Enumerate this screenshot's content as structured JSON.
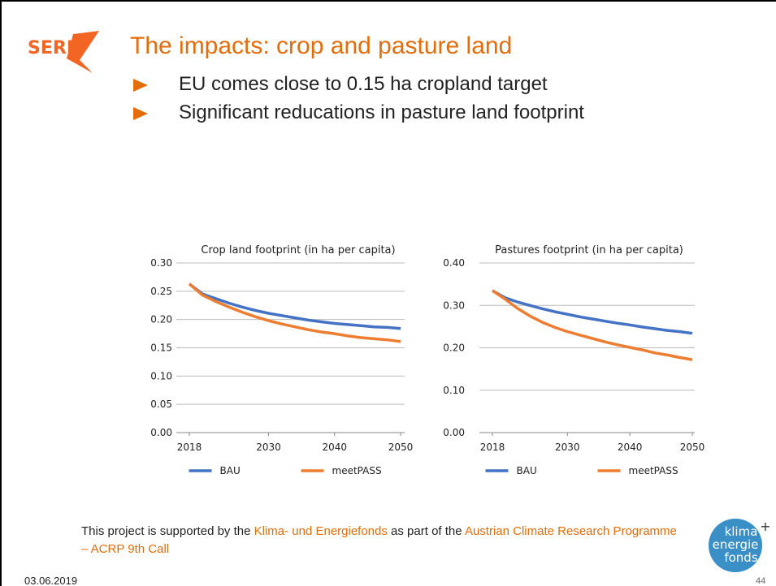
{
  "slide": {
    "title": "The impacts: crop and pasture land",
    "bullets": [
      "EU comes close to 0.15 ha cropland target",
      "Significant reducations in pasture land footprint"
    ],
    "logo": "SERI",
    "footer": [
      "This project is supported by the ",
      "Klima- und Energiefonds",
      " as part of the ",
      "Austrian Climate Research Programme – ACRP 9th Call"
    ],
    "date": "03.06.2019",
    "page": "44",
    "fund_logo": [
      "klima",
      "+",
      "energie",
      "fonds"
    ]
  },
  "chart_data": [
    {
      "type": "line",
      "title": "Crop land footprint (in ha per capita)",
      "x": [
        2018,
        2020,
        2022,
        2024,
        2026,
        2028,
        2030,
        2032,
        2034,
        2036,
        2038,
        2040,
        2042,
        2044,
        2046,
        2048,
        2050
      ],
      "series": [
        {
          "name": "BAU",
          "color": "#4472c4",
          "values": [
            0.263,
            0.245,
            0.237,
            0.229,
            0.222,
            0.216,
            0.211,
            0.207,
            0.203,
            0.199,
            0.196,
            0.193,
            0.191,
            0.189,
            0.187,
            0.186,
            0.184
          ]
        },
        {
          "name": "meetPASS",
          "color": "#ed7d31",
          "values": [
            0.263,
            0.243,
            0.232,
            0.222,
            0.213,
            0.205,
            0.198,
            0.192,
            0.187,
            0.182,
            0.178,
            0.175,
            0.171,
            0.168,
            0.166,
            0.164,
            0.161
          ]
        }
      ],
      "xlim": [
        2018,
        2050
      ],
      "xticks": [
        2018,
        2030,
        2040,
        2050
      ],
      "ylim": [
        0,
        0.3
      ],
      "yticks": [
        {
          "value": 0,
          "label": "0.00"
        },
        {
          "value": 0.05,
          "label": "0.05"
        },
        {
          "value": 0.1,
          "label": "0.10"
        },
        {
          "value": 0.15,
          "label": "0.15"
        },
        {
          "value": 0.2,
          "label": "0.20"
        },
        {
          "value": 0.25,
          "label": "0.25"
        },
        {
          "value": 0.3,
          "label": "0.30"
        }
      ],
      "grid": true,
      "legend": "bottom"
    },
    {
      "type": "line",
      "title": "Pastures footprint (in ha per capita)",
      "x": [
        2018,
        2020,
        2022,
        2024,
        2026,
        2028,
        2030,
        2032,
        2034,
        2036,
        2038,
        2040,
        2042,
        2044,
        2046,
        2048,
        2050
      ],
      "series": [
        {
          "name": "BAU",
          "color": "#4472c4",
          "values": [
            0.335,
            0.318,
            0.308,
            0.3,
            0.292,
            0.285,
            0.279,
            0.273,
            0.268,
            0.263,
            0.258,
            0.254,
            0.249,
            0.245,
            0.241,
            0.238,
            0.234
          ]
        },
        {
          "name": "meetPASS",
          "color": "#ed7d31",
          "values": [
            0.335,
            0.315,
            0.293,
            0.275,
            0.26,
            0.248,
            0.238,
            0.23,
            0.222,
            0.214,
            0.207,
            0.201,
            0.195,
            0.188,
            0.183,
            0.177,
            0.172
          ]
        }
      ],
      "xlim": [
        2018,
        2050
      ],
      "xticks": [
        2018,
        2030,
        2040,
        2050
      ],
      "ylim": [
        0,
        0.4
      ],
      "yticks": [
        {
          "value": 0,
          "label": "0.00"
        },
        {
          "value": 0.1,
          "label": "0.10"
        },
        {
          "value": 0.2,
          "label": "0.20"
        },
        {
          "value": 0.3,
          "label": "0.30"
        },
        {
          "value": 0.4,
          "label": "0.40"
        }
      ],
      "grid": true,
      "legend": "bottom"
    }
  ]
}
